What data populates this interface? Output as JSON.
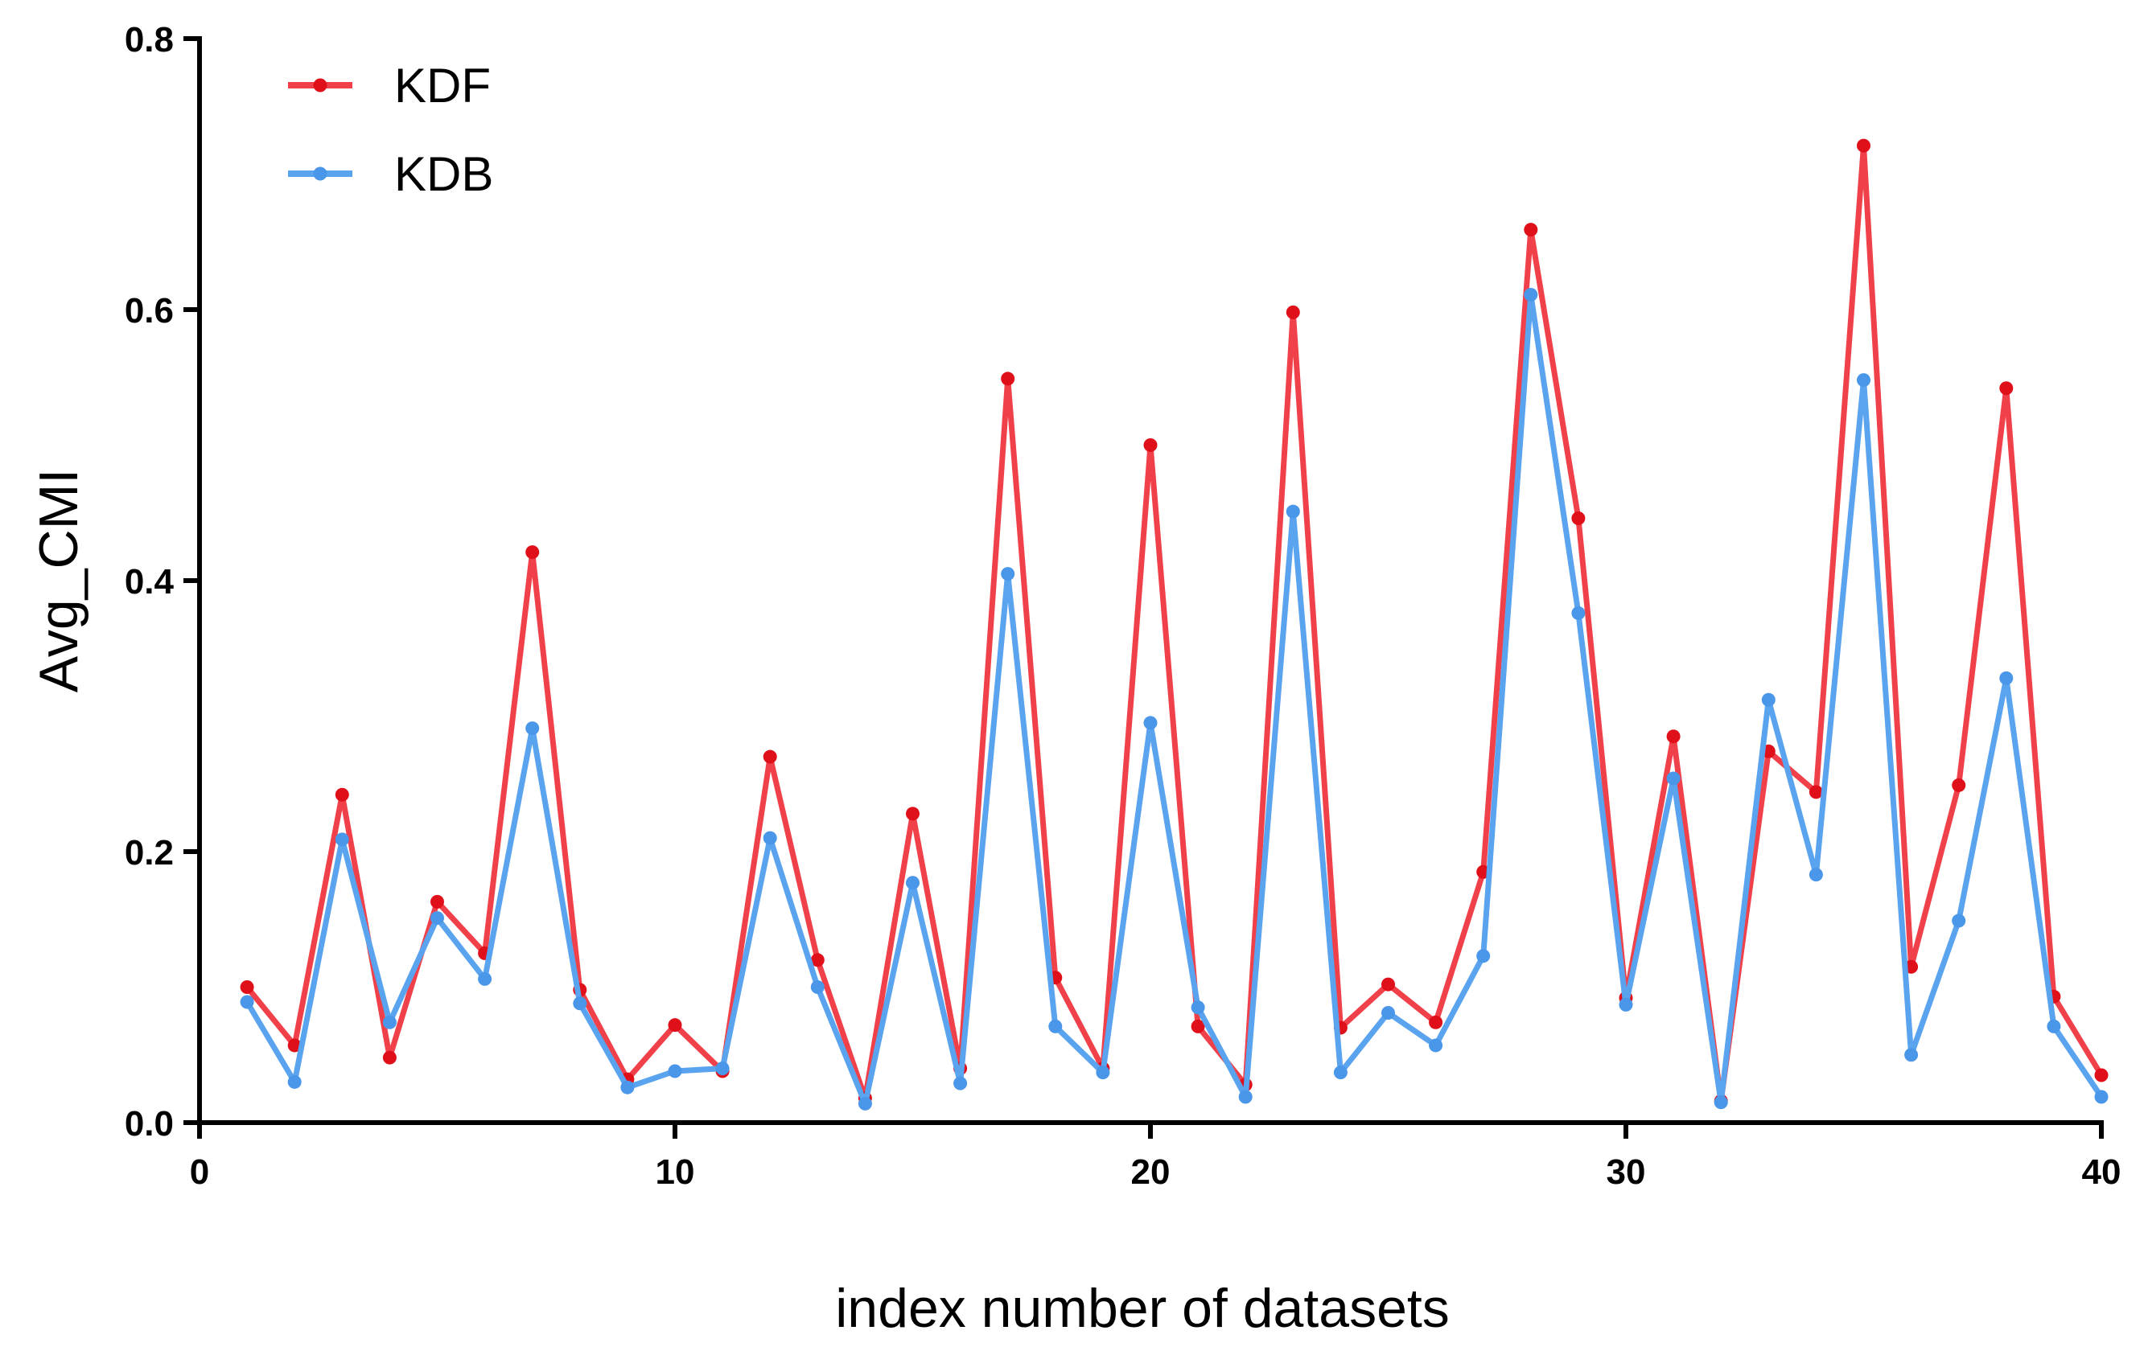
{
  "chart_data": {
    "type": "line",
    "title": "",
    "xlabel": "index number of datasets",
    "ylabel": "Avg_CMI",
    "xlim": [
      0,
      40
    ],
    "ylim": [
      0,
      0.8
    ],
    "xticks": [
      0,
      10,
      20,
      30,
      40
    ],
    "xtick_labels": [
      "0",
      "10",
      "20",
      "30",
      "40"
    ],
    "yticks": [
      0,
      0.2,
      0.4,
      0.6,
      0.8
    ],
    "ytick_labels": [
      "0.0",
      "0.2",
      "0.4",
      "0.6",
      "0.8"
    ],
    "grid": false,
    "legend_position": "top-left",
    "x": [
      1,
      2,
      3,
      4,
      5,
      6,
      7,
      8,
      9,
      10,
      11,
      12,
      13,
      14,
      15,
      16,
      17,
      18,
      19,
      20,
      21,
      22,
      23,
      24,
      25,
      26,
      27,
      28,
      29,
      30,
      31,
      32,
      33,
      34,
      35,
      36,
      37,
      38,
      39,
      40
    ],
    "series": [
      {
        "name": "KDF",
        "color": "#f0414a",
        "marker_color": "#e0101a",
        "values": [
          0.1,
          0.057,
          0.242,
          0.048,
          0.163,
          0.125,
          0.421,
          0.098,
          0.032,
          0.072,
          0.038,
          0.27,
          0.12,
          0.018,
          0.228,
          0.04,
          0.549,
          0.107,
          0.04,
          0.5,
          0.071,
          0.028,
          0.598,
          0.07,
          0.102,
          0.074,
          0.185,
          0.659,
          0.446,
          0.092,
          0.285,
          0.016,
          0.274,
          0.244,
          0.721,
          0.115,
          0.249,
          0.542,
          0.093,
          0.035
        ]
      },
      {
        "name": "KDB",
        "color": "#5aa3ee",
        "marker_color": "#4a96e8",
        "values": [
          0.089,
          0.03,
          0.209,
          0.074,
          0.151,
          0.106,
          0.291,
          0.088,
          0.026,
          0.038,
          0.04,
          0.21,
          0.1,
          0.014,
          0.177,
          0.029,
          0.405,
          0.071,
          0.037,
          0.295,
          0.085,
          0.019,
          0.451,
          0.037,
          0.081,
          0.057,
          0.123,
          0.611,
          0.376,
          0.087,
          0.254,
          0.015,
          0.312,
          0.183,
          0.548,
          0.05,
          0.149,
          0.328,
          0.071,
          0.019
        ]
      }
    ]
  }
}
